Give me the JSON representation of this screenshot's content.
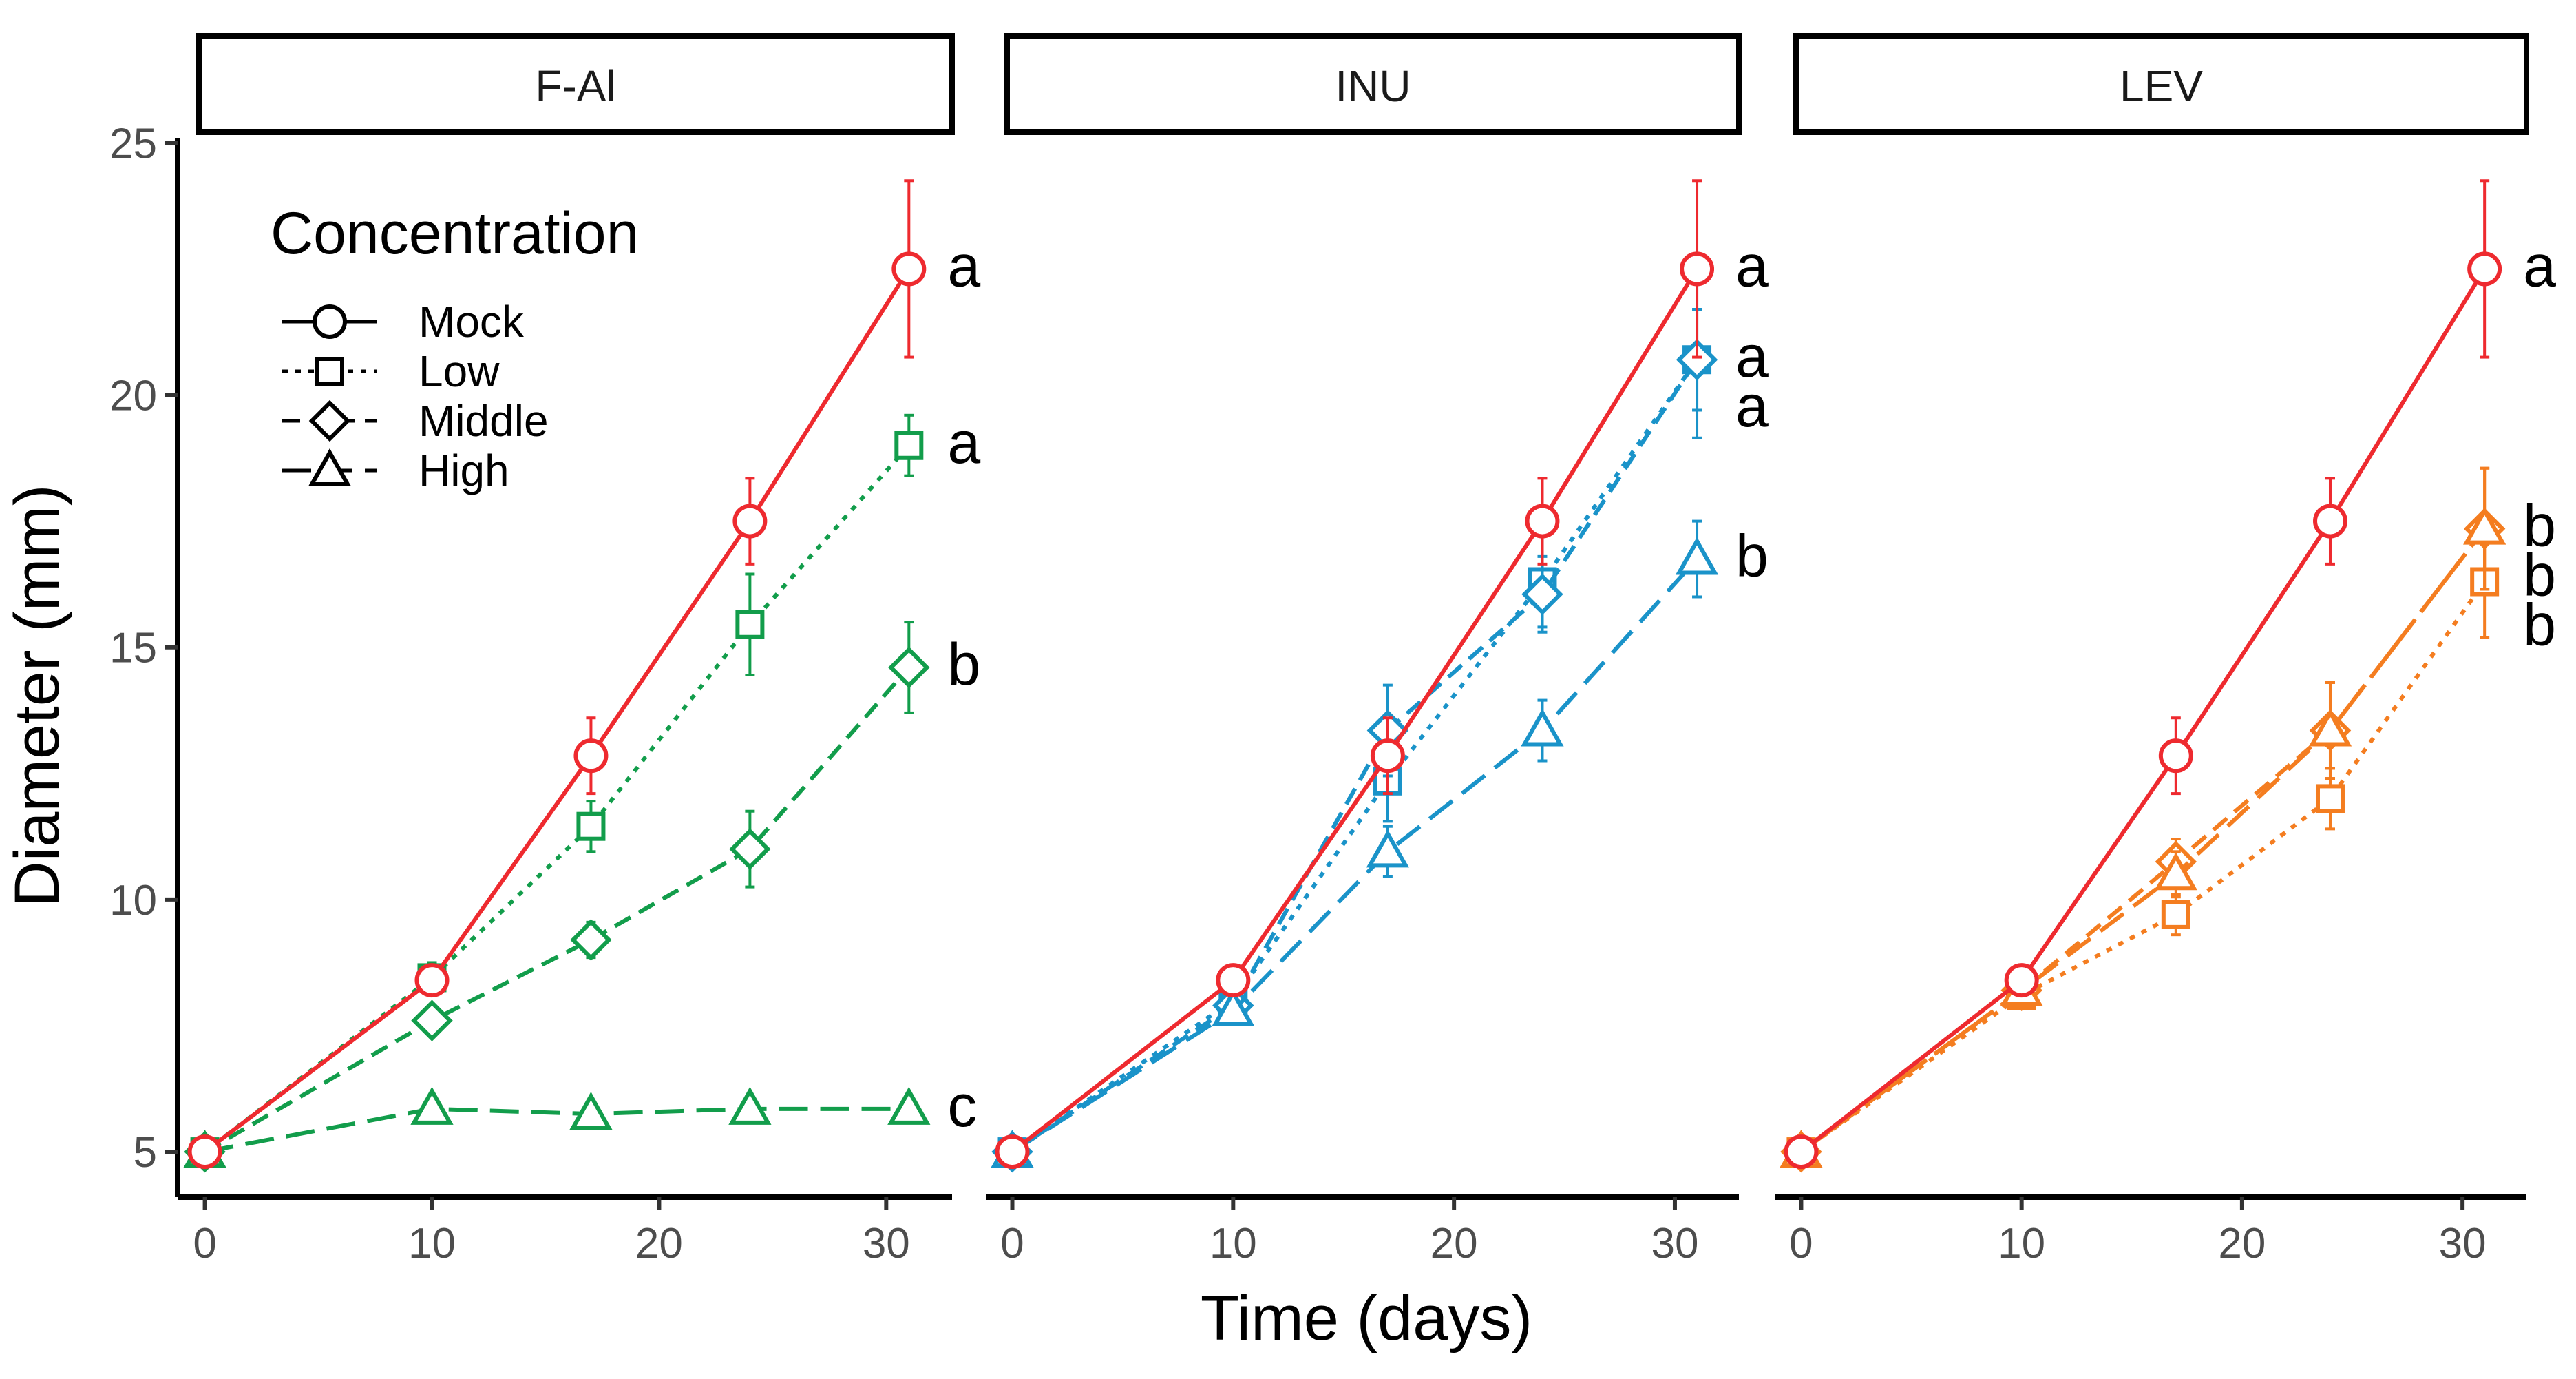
{
  "chart_data": {
    "type": "line",
    "layout": "facet-row",
    "x_label": "Time (days)",
    "y_label": "Diameter (mm)",
    "x_ticks": [
      0,
      10,
      20,
      30
    ],
    "y_ticks": [
      5,
      10,
      15,
      20,
      25
    ],
    "x_range": [
      -1.2,
      32.9
    ],
    "y_range": [
      4.1,
      25.1
    ],
    "legend": {
      "title": "Concentration",
      "position": "top-left",
      "entries": [
        {
          "name": "Mock",
          "marker": "circle",
          "dash": "solid"
        },
        {
          "name": "Low",
          "marker": "square",
          "dash": "dotted"
        },
        {
          "name": "Middle",
          "marker": "diamond",
          "dash": "dashed"
        },
        {
          "name": "High",
          "marker": "triangle",
          "dash": "longdash"
        }
      ]
    },
    "colors": {
      "mock": "#EE2A2F",
      "F-Al": "#129D4B",
      "INU": "#1A93C9",
      "LEV": "#F47D20"
    },
    "panels": [
      {
        "title": "F-Al",
        "color_key": "F-Al",
        "series": [
          {
            "name": "Mock",
            "x": [
              0,
              10,
              17,
              24,
              31
            ],
            "y": [
              5.0,
              8.4,
              12.85,
              17.5,
              22.5
            ],
            "err": [
              0.1,
              0.3,
              0.75,
              0.85,
              1.75
            ],
            "letter": "a"
          },
          {
            "name": "Low",
            "x": [
              0,
              10,
              17,
              24,
              31
            ],
            "y": [
              5.0,
              8.45,
              11.45,
              15.45,
              19.0
            ],
            "err": [
              0.1,
              0.3,
              0.5,
              1.0,
              0.6
            ],
            "letter": "a"
          },
          {
            "name": "Middle",
            "x": [
              0,
              10,
              17,
              24,
              31
            ],
            "y": [
              5.0,
              7.6,
              9.2,
              11.0,
              14.6
            ],
            "err": [
              0.1,
              0.2,
              0.35,
              0.75,
              0.9
            ],
            "letter": "b"
          },
          {
            "name": "High",
            "x": [
              0,
              10,
              17,
              24,
              31
            ],
            "y": [
              5.0,
              5.85,
              5.75,
              5.85,
              5.85
            ],
            "err": [
              0.1,
              0.1,
              0.1,
              0.1,
              0.1
            ],
            "letter": "c"
          }
        ]
      },
      {
        "title": "INU",
        "color_key": "INU",
        "series": [
          {
            "name": "Mock",
            "x": [
              0,
              10,
              17,
              24,
              31
            ],
            "y": [
              5.0,
              8.4,
              12.85,
              17.5,
              22.5
            ],
            "err": [
              0.1,
              0.3,
              0.75,
              0.85,
              1.75
            ],
            "letter": "a"
          },
          {
            "name": "Low",
            "x": [
              0,
              10,
              17,
              24,
              31
            ],
            "y": [
              5.0,
              8.0,
              12.35,
              16.3,
              20.7
            ],
            "err": [
              0.1,
              0.3,
              0.8,
              0.9,
              1.0
            ],
            "letter": "a"
          },
          {
            "name": "Middle",
            "x": [
              0,
              10,
              17,
              24,
              31
            ],
            "y": [
              5.0,
              7.9,
              13.35,
              16.05,
              20.7
            ],
            "err": [
              0.1,
              0.3,
              0.9,
              0.75,
              1.55
            ],
            "letter": "a"
          },
          {
            "name": "High",
            "x": [
              0,
              10,
              17,
              24,
              31
            ],
            "y": [
              5.0,
              7.8,
              10.95,
              13.35,
              16.75
            ],
            "err": [
              0.1,
              0.25,
              0.5,
              0.6,
              0.75
            ],
            "letter": "b"
          }
        ]
      },
      {
        "title": "LEV",
        "color_key": "LEV",
        "series": [
          {
            "name": "Mock",
            "x": [
              0,
              10,
              17,
              24,
              31
            ],
            "y": [
              5.0,
              8.4,
              12.85,
              17.5,
              22.5
            ],
            "err": [
              0.1,
              0.3,
              0.75,
              0.85,
              1.75
            ],
            "letter": "a"
          },
          {
            "name": "Low",
            "x": [
              0,
              10,
              17,
              24,
              31
            ],
            "y": [
              5.0,
              8.1,
              9.7,
              12.0,
              16.3
            ],
            "err": [
              0.1,
              0.25,
              0.4,
              0.6,
              1.1
            ],
            "letter": "b"
          },
          {
            "name": "Middle",
            "x": [
              0,
              10,
              17,
              24,
              31
            ],
            "y": [
              5.0,
              8.2,
              10.75,
              13.35,
              17.35
            ],
            "err": [
              0.1,
              0.25,
              0.45,
              0.95,
              1.2
            ],
            "letter": "b"
          },
          {
            "name": "High",
            "x": [
              0,
              10,
              17,
              24,
              31
            ],
            "y": [
              5.0,
              8.2,
              10.5,
              13.35,
              17.35
            ],
            "err": [
              0.1,
              0.25,
              0.45,
              0.95,
              1.2
            ],
            "letter": "b"
          }
        ]
      }
    ]
  }
}
